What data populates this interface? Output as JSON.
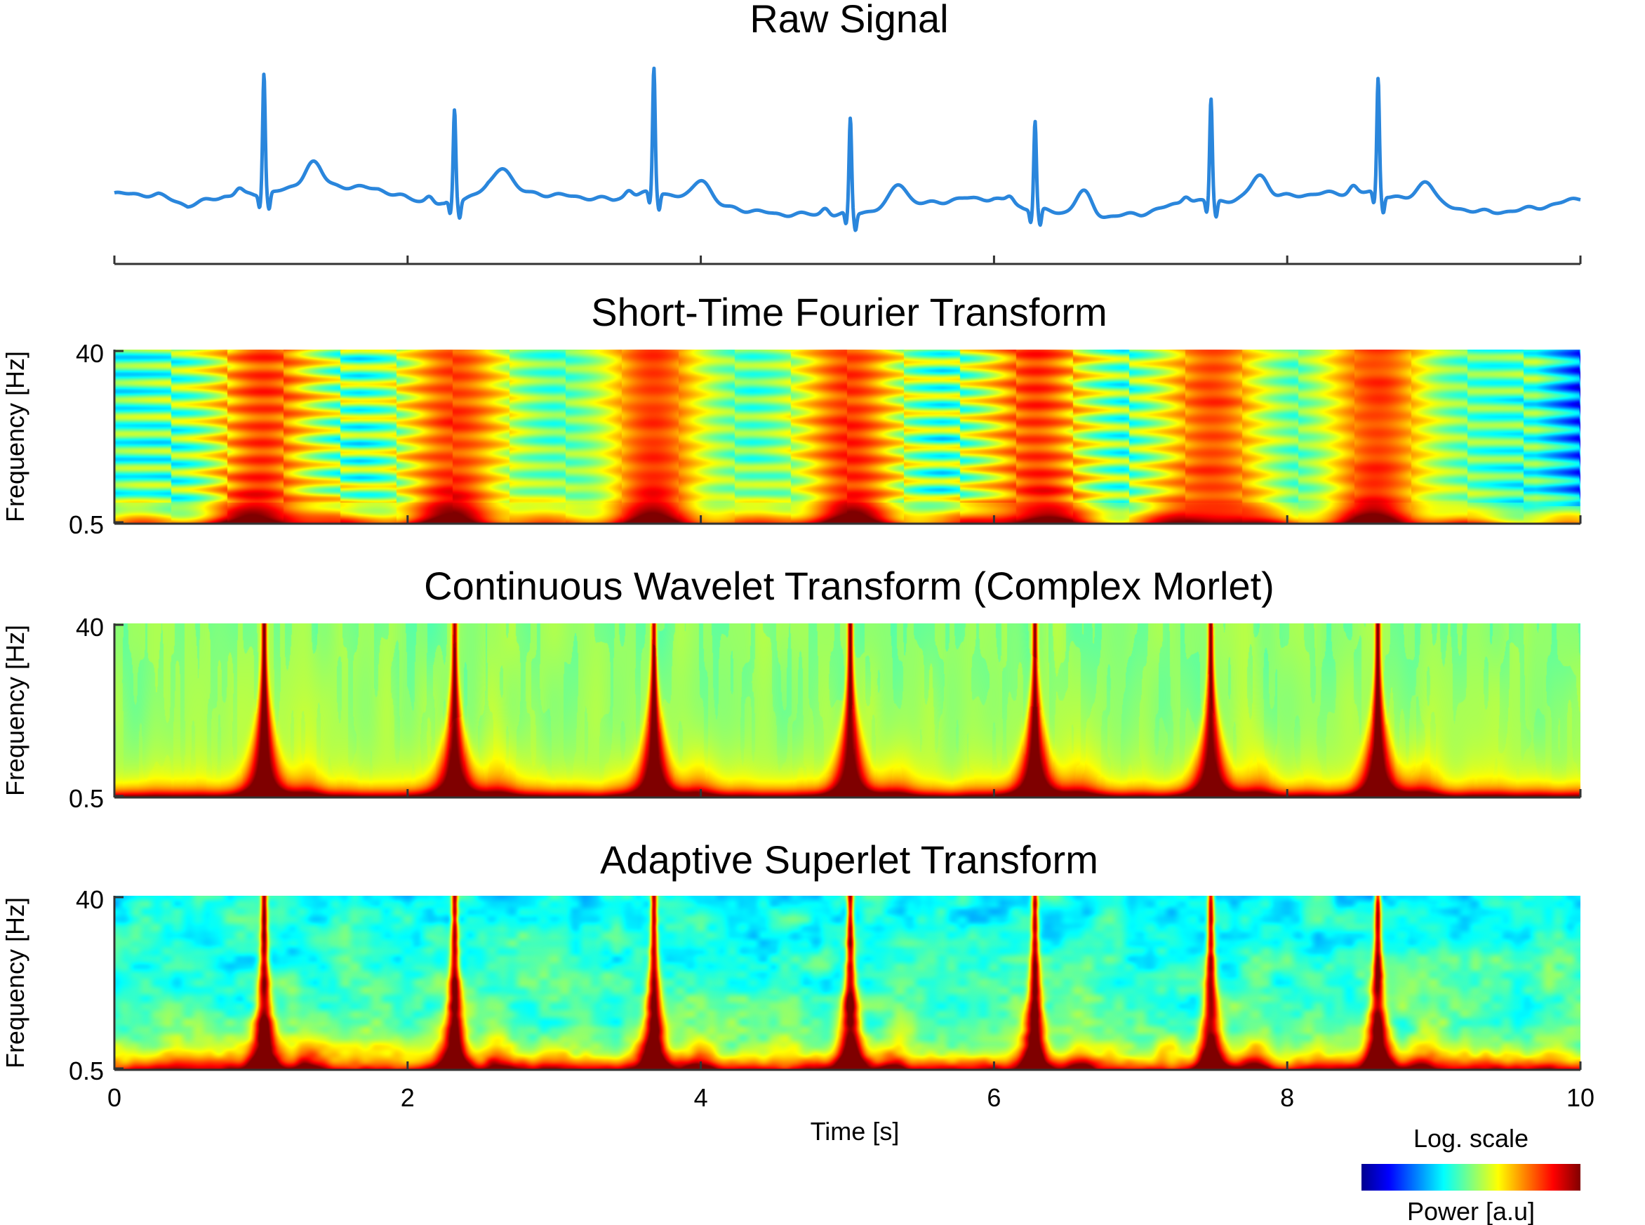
{
  "chart_data": [
    {
      "type": "line",
      "title": "Raw Signal",
      "x_range": [
        0,
        10
      ],
      "color": "#2a86dc",
      "ecg": {
        "duration_s": 10,
        "r_peaks_s": [
          1.02,
          2.32,
          3.68,
          5.02,
          6.28,
          7.48,
          8.62
        ],
        "baseline_points": [
          [
            0.0,
            0.62
          ],
          [
            0.3,
            0.61
          ],
          [
            0.5,
            0.52
          ],
          [
            0.75,
            0.6
          ],
          [
            0.95,
            0.61
          ],
          [
            1.4,
            0.7
          ],
          [
            1.8,
            0.66
          ],
          [
            2.0,
            0.58
          ],
          [
            2.25,
            0.52
          ],
          [
            2.55,
            0.66
          ],
          [
            2.9,
            0.62
          ],
          [
            3.4,
            0.57
          ],
          [
            3.7,
            0.64
          ],
          [
            4.1,
            0.52
          ],
          [
            4.5,
            0.45
          ],
          [
            4.95,
            0.44
          ],
          [
            5.3,
            0.5
          ],
          [
            5.8,
            0.58
          ],
          [
            6.0,
            0.58
          ],
          [
            6.2,
            0.5
          ],
          [
            6.7,
            0.42
          ],
          [
            7.0,
            0.45
          ],
          [
            7.3,
            0.55
          ],
          [
            7.7,
            0.57
          ],
          [
            8.2,
            0.62
          ],
          [
            8.6,
            0.63
          ],
          [
            9.0,
            0.52
          ],
          [
            9.4,
            0.46
          ],
          [
            9.7,
            0.5
          ],
          [
            10.0,
            0.58
          ]
        ]
      }
    },
    {
      "type": "heatmap",
      "title": "Short-Time Fourier Transform",
      "ylabel": "Frequency [Hz]",
      "y_ticks": [
        "40",
        "0.5"
      ],
      "x_range": [
        0,
        10
      ],
      "y_range": [
        0.5,
        40
      ],
      "y_scale": "log",
      "method": "stft",
      "beats_s": [
        1.02,
        2.32,
        3.68,
        5.02,
        6.28,
        7.48,
        8.62
      ]
    },
    {
      "type": "heatmap",
      "title": "Continuous Wavelet Transform (Complex Morlet)",
      "ylabel": "Frequency [Hz]",
      "y_ticks": [
        "40",
        "0.5"
      ],
      "x_range": [
        0,
        10
      ],
      "y_range": [
        0.5,
        40
      ],
      "y_scale": "log",
      "method": "cwt",
      "beats_s": [
        1.02,
        2.32,
        3.68,
        5.02,
        6.28,
        7.48,
        8.62
      ]
    },
    {
      "type": "heatmap",
      "title": "Adaptive Superlet Transform",
      "ylabel": "Frequency [Hz]",
      "y_ticks": [
        "40",
        "0.5"
      ],
      "x_range": [
        0,
        10
      ],
      "y_range": [
        0.5,
        40
      ],
      "y_scale": "log",
      "method": "aslt",
      "xlabel": "Time [s]",
      "x_ticks": [
        "0",
        "2",
        "4",
        "6",
        "8",
        "10"
      ],
      "beats_s": [
        1.02,
        2.32,
        3.68,
        5.02,
        6.28,
        7.48,
        8.62
      ]
    }
  ],
  "colorbar": {
    "title": "Log. scale",
    "label": "Power [a.u]",
    "colormap": "jet",
    "colors": [
      "#00008f",
      "#0000ff",
      "#00ffff",
      "#ffff00",
      "#ff0000",
      "#800000"
    ]
  }
}
